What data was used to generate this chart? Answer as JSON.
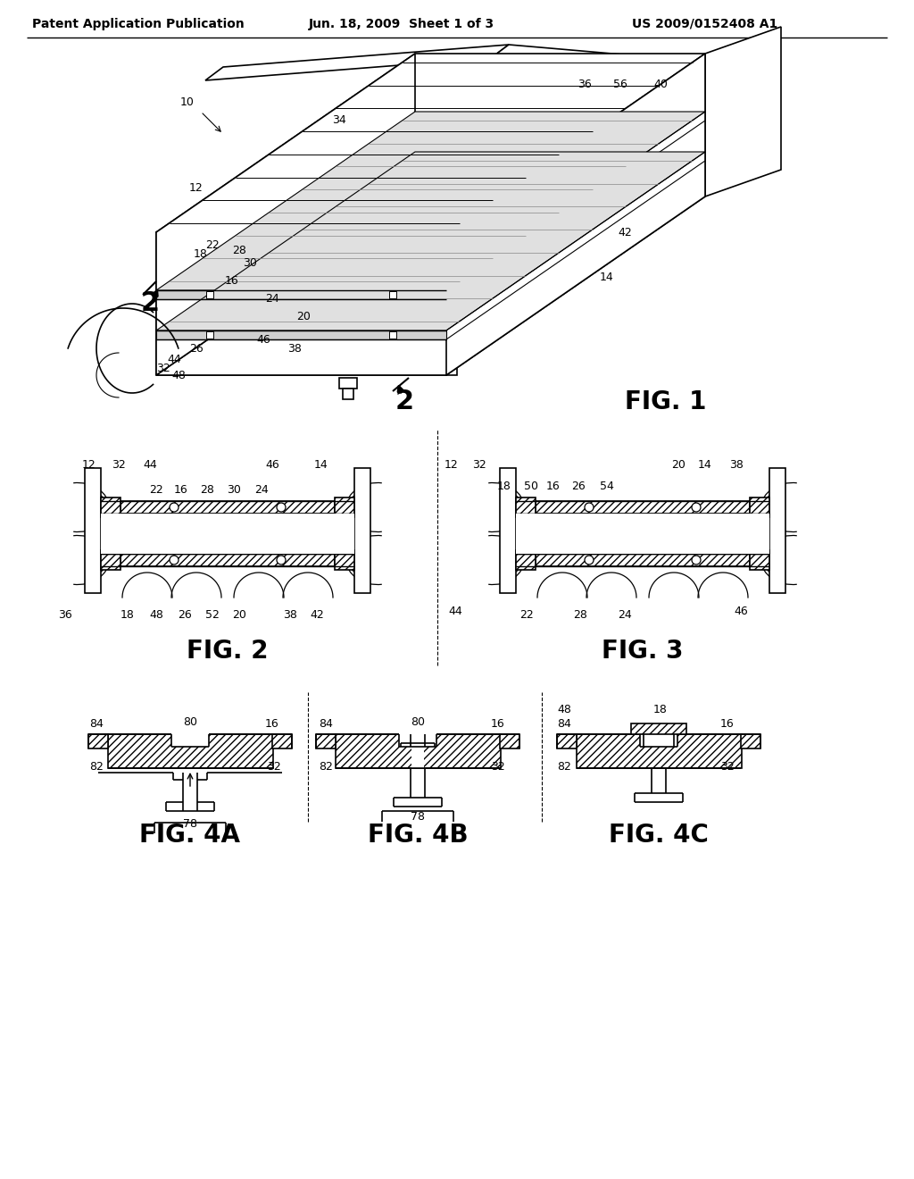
{
  "background_color": "#ffffff",
  "header_left": "Patent Application Publication",
  "header_center": "Jun. 18, 2009  Sheet 1 of 3",
  "header_right": "US 2009/0152408 A1",
  "fig_labels": {
    "fig1": "FIG. 1",
    "fig2": "FIG. 2",
    "fig3": "FIG. 3",
    "fig4a": "FIG. 4A",
    "fig4b": "FIG. 4B",
    "fig4c": "FIG. 4C"
  },
  "line_color": "#000000",
  "label_fontsize": 9,
  "fig_label_fontsize": 20,
  "header_fontsize": 10
}
